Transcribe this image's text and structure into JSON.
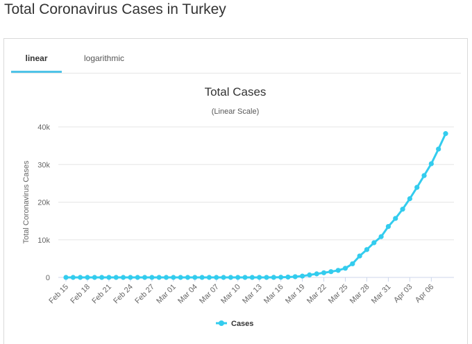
{
  "page": {
    "title": "Total Coronavirus Cases in Turkey"
  },
  "tabs": [
    {
      "label": "linear",
      "active": true
    },
    {
      "label": "logarithmic",
      "active": false
    }
  ],
  "colors": {
    "accent": "#4fc3e8",
    "series": "#33ccee",
    "grid": "#e6e6e6",
    "text": "#333333"
  },
  "chart_data": {
    "type": "line",
    "title": "Total Cases",
    "subtitle": "(Linear Scale)",
    "ylabel": "Total Coronavirus Cases",
    "xlabel": "",
    "ylim": [
      0,
      40000
    ],
    "y_ticks": [
      0,
      10000,
      20000,
      30000,
      40000
    ],
    "y_tick_labels": [
      "0",
      "10k",
      "20k",
      "30k",
      "40k"
    ],
    "grid": true,
    "legend": "bottom-center",
    "x_tick_labels": [
      "Feb 15",
      "Feb 18",
      "Feb 21",
      "Feb 24",
      "Feb 27",
      "Mar 01",
      "Mar 04",
      "Mar 07",
      "Mar 10",
      "Mar 13",
      "Mar 16",
      "Mar 19",
      "Mar 22",
      "Mar 25",
      "Mar 28",
      "Mar 31",
      "Apr 03",
      "Apr 06"
    ],
    "x": [
      "Feb 15",
      "Feb 16",
      "Feb 17",
      "Feb 18",
      "Feb 19",
      "Feb 20",
      "Feb 21",
      "Feb 22",
      "Feb 23",
      "Feb 24",
      "Feb 25",
      "Feb 26",
      "Feb 27",
      "Feb 28",
      "Feb 29",
      "Mar 01",
      "Mar 02",
      "Mar 03",
      "Mar 04",
      "Mar 05",
      "Mar 06",
      "Mar 07",
      "Mar 08",
      "Mar 09",
      "Mar 10",
      "Mar 11",
      "Mar 12",
      "Mar 13",
      "Mar 14",
      "Mar 15",
      "Mar 16",
      "Mar 17",
      "Mar 18",
      "Mar 19",
      "Mar 20",
      "Mar 21",
      "Mar 22",
      "Mar 23",
      "Mar 24",
      "Mar 25",
      "Mar 26",
      "Mar 27",
      "Mar 28",
      "Mar 29",
      "Mar 30",
      "Mar 31",
      "Apr 01",
      "Apr 02",
      "Apr 03",
      "Apr 04",
      "Apr 05",
      "Apr 06",
      "Apr 07",
      "Apr 08"
    ],
    "series": [
      {
        "name": "Cases",
        "values": [
          0,
          0,
          0,
          0,
          0,
          0,
          0,
          0,
          0,
          0,
          0,
          0,
          0,
          0,
          0,
          0,
          0,
          0,
          0,
          0,
          0,
          0,
          0,
          0,
          0,
          1,
          1,
          5,
          6,
          18,
          47,
          98,
          191,
          359,
          670,
          947,
          1236,
          1529,
          1872,
          2433,
          3629,
          5698,
          7402,
          9217,
          10827,
          13531,
          15679,
          18135,
          20921,
          23934,
          27069,
          30217,
          34109,
          38226
        ]
      }
    ]
  }
}
